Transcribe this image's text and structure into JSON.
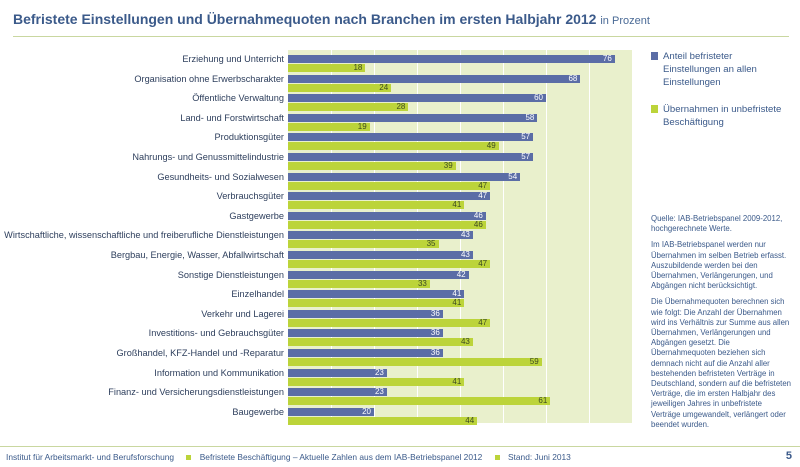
{
  "chart_data": {
    "type": "bar",
    "orientation": "horizontal",
    "title": "Befristete Einstellungen und Übernahmequoten nach Branchen im ersten Halbjahr 2012",
    "unit": "in Prozent",
    "xlim": [
      0,
      80
    ],
    "grid": true,
    "legend_position": "right",
    "categories": [
      "Erziehung und Unterricht",
      "Organisation ohne Erwerbscharakter",
      "Öffentliche Verwaltung",
      "Land- und Forstwirtschaft",
      "Produktionsgüter",
      "Nahrungs- und Genussmittelindustrie",
      "Gesundheits- und Sozialwesen",
      "Verbrauchsgüter",
      "Gastgewerbe",
      "Wirtschaftliche, wissenschaftliche und freiberufliche Dienstleistungen",
      "Bergbau, Energie, Wasser, Abfallwirtschaft",
      "Sonstige Dienstleistungen",
      "Einzelhandel",
      "Verkehr und Lagerei",
      "Investitions- und Gebrauchsgüter",
      "Großhandel, KFZ-Handel und -Reparatur",
      "Information und Kommunikation",
      "Finanz- und Versicherungsdienstleistungen",
      "Baugewerbe"
    ],
    "series": [
      {
        "name": "Anteil befristeter Einstellungen an allen Einstellungen",
        "color": "#5b6da6",
        "values": [
          76,
          68,
          60,
          58,
          57,
          57,
          54,
          47,
          46,
          43,
          43,
          42,
          41,
          36,
          36,
          36,
          23,
          23,
          20
        ]
      },
      {
        "name": "Übernahmen in unbefristete Beschäftigung",
        "color": "#bcd43a",
        "values": [
          18,
          24,
          28,
          19,
          49,
          39,
          47,
          41,
          46,
          35,
          47,
          33,
          41,
          47,
          43,
          59,
          41,
          61,
          44
        ]
      }
    ]
  },
  "notes": {
    "source": "Quelle: IAB-Betriebspanel 2009-2012, hochgerechnete Werte.",
    "p1": "Im IAB-Betriebspanel werden nur Übernahmen im selben Betrieb erfasst. Auszubildende werden bei den Übernahmen, Verlängerungen, und Abgängen nicht berücksichtigt.",
    "p2": "Die Übernahmequoten berechnen sich wie folgt: Die Anzahl der Übernahmen wird ins Verhältnis zur Summe aus allen Übernahmen, Verlängerungen und Abgängen gesetzt. Die Übernahmequoten beziehen sich demnach nicht auf die Anzahl aller bestehenden befristeten Verträge in Deutschland, sondern auf die befristeten Verträge, die im ersten Halbjahr des jeweiligen Jahres in unbefristete Verträge umgewandelt, verlängert oder beendet wurden."
  },
  "footer": {
    "institute": "Institut für Arbeitsmarkt- und Berufsforschung",
    "series": "Befristete Beschäftigung – Aktuelle Zahlen aus dem IAB-Betriebspanel 2012",
    "stand": "Stand: Juni 2013",
    "page": "5"
  },
  "colors": {
    "accent": "#3b5a8a",
    "plot_bg": "#e9f0cc"
  }
}
